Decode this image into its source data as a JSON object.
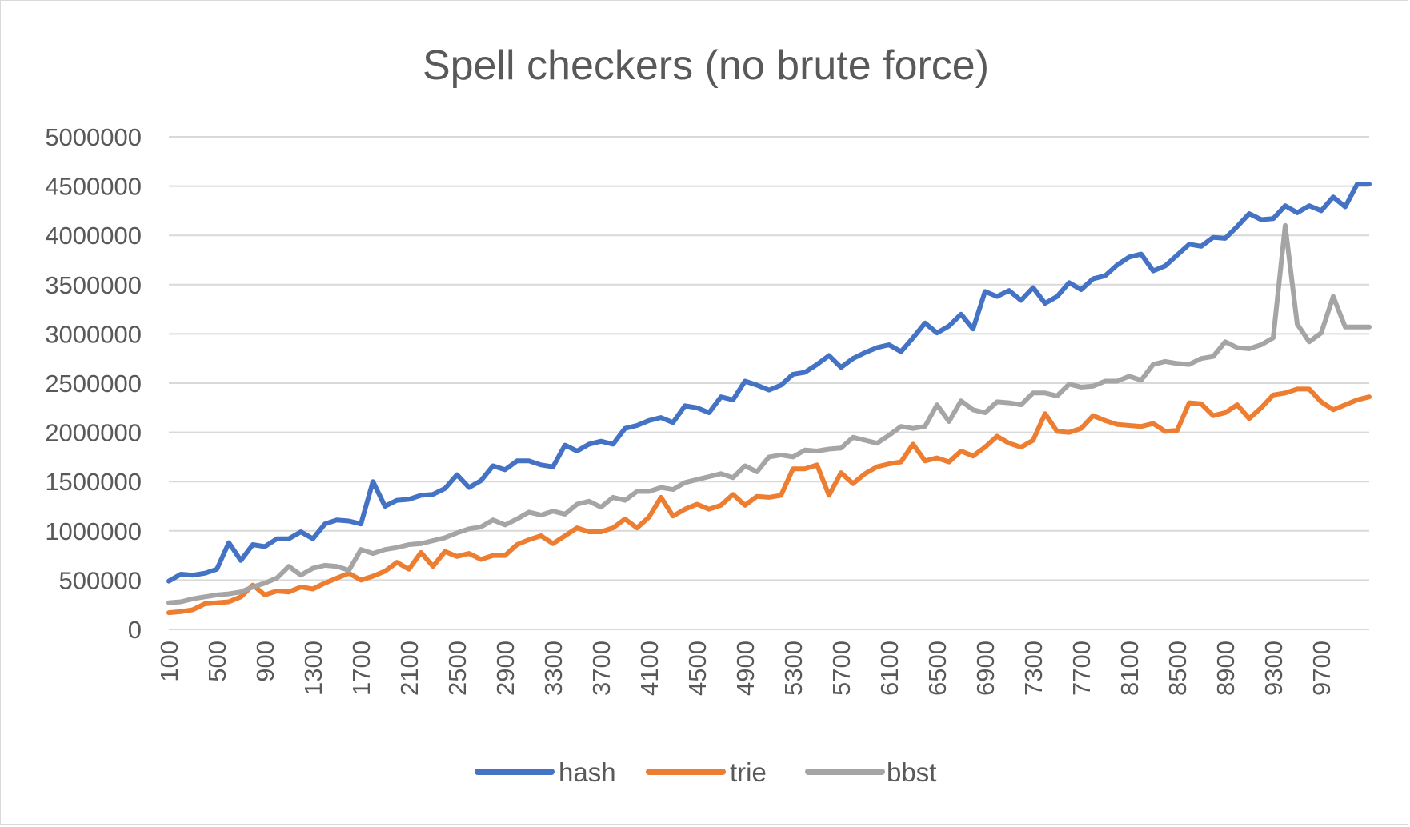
{
  "chart_data": {
    "type": "line",
    "title": "Spell checkers (no brute force)",
    "xlabel": "",
    "ylabel": "",
    "ylim": [
      0,
      5000000
    ],
    "yticks": [
      0,
      500000,
      1000000,
      1500000,
      2000000,
      2500000,
      3000000,
      3500000,
      4000000,
      4500000,
      5000000
    ],
    "ytick_labels": [
      "0",
      "500000",
      "1000000",
      "1500000",
      "2000000",
      "2500000",
      "3000000",
      "3500000",
      "4000000",
      "4500000",
      "5000000"
    ],
    "xtick_labels": [
      "100",
      "500",
      "900",
      "1300",
      "1700",
      "2100",
      "2500",
      "2900",
      "3300",
      "3700",
      "4100",
      "4500",
      "4900",
      "5300",
      "5700",
      "6100",
      "6500",
      "6900",
      "7300",
      "7700",
      "8100",
      "8500",
      "8900",
      "9300",
      "9700"
    ],
    "x": [
      100,
      200,
      300,
      400,
      500,
      600,
      700,
      800,
      900,
      1000,
      1100,
      1200,
      1300,
      1400,
      1500,
      1600,
      1700,
      1800,
      1900,
      2000,
      2100,
      2200,
      2300,
      2400,
      2500,
      2600,
      2700,
      2800,
      2900,
      3000,
      3100,
      3200,
      3300,
      3400,
      3500,
      3600,
      3700,
      3800,
      3900,
      4000,
      4100,
      4200,
      4300,
      4400,
      4500,
      4600,
      4700,
      4800,
      4900,
      5000,
      5100,
      5200,
      5300,
      5400,
      5500,
      5600,
      5700,
      5800,
      5900,
      6000,
      6100,
      6200,
      6300,
      6400,
      6500,
      6600,
      6700,
      6800,
      6900,
      7000,
      7100,
      7200,
      7300,
      7400,
      7500,
      7600,
      7700,
      7800,
      7900,
      8000,
      8100,
      8200,
      8300,
      8400,
      8500,
      8600,
      8700,
      8800,
      8900,
      9000,
      9100,
      9200,
      9300,
      9400,
      9500,
      9600,
      9700,
      9800,
      9900,
      10000,
      10100
    ],
    "legend_position": "bottom",
    "grid": true,
    "series": [
      {
        "name": "hash",
        "color": "#4472c4",
        "values": [
          490000,
          560000,
          550000,
          570000,
          610000,
          880000,
          700000,
          860000,
          840000,
          920000,
          920000,
          990000,
          920000,
          1070000,
          1110000,
          1100000,
          1070000,
          1500000,
          1250000,
          1310000,
          1320000,
          1360000,
          1370000,
          1430000,
          1570000,
          1440000,
          1510000,
          1660000,
          1620000,
          1710000,
          1710000,
          1670000,
          1650000,
          1870000,
          1810000,
          1880000,
          1910000,
          1880000,
          2040000,
          2070000,
          2120000,
          2150000,
          2100000,
          2270000,
          2250000,
          2200000,
          2360000,
          2330000,
          2520000,
          2480000,
          2430000,
          2480000,
          2590000,
          2610000,
          2690000,
          2780000,
          2660000,
          2750000,
          2810000,
          2860000,
          2890000,
          2820000,
          2960000,
          3110000,
          3010000,
          3080000,
          3200000,
          3050000,
          3430000,
          3380000,
          3440000,
          3340000,
          3470000,
          3310000,
          3380000,
          3520000,
          3450000,
          3560000,
          3590000,
          3700000,
          3780000,
          3810000,
          3640000,
          3690000,
          3800000,
          3910000,
          3890000,
          3980000,
          3970000,
          4090000,
          4220000,
          4160000,
          4170000,
          4300000,
          4230000,
          4300000,
          4250000,
          4390000,
          4290000,
          4520000,
          4520000
        ]
      },
      {
        "name": "trie",
        "color": "#ed7d31",
        "values": [
          170000,
          180000,
          200000,
          260000,
          270000,
          280000,
          330000,
          450000,
          350000,
          390000,
          380000,
          430000,
          410000,
          470000,
          520000,
          570000,
          500000,
          540000,
          590000,
          680000,
          610000,
          780000,
          640000,
          790000,
          740000,
          770000,
          710000,
          750000,
          750000,
          860000,
          910000,
          950000,
          870000,
          950000,
          1030000,
          990000,
          990000,
          1030000,
          1120000,
          1030000,
          1140000,
          1340000,
          1150000,
          1220000,
          1270000,
          1220000,
          1260000,
          1370000,
          1260000,
          1350000,
          1340000,
          1360000,
          1630000,
          1630000,
          1670000,
          1360000,
          1590000,
          1480000,
          1580000,
          1650000,
          1680000,
          1700000,
          1880000,
          1710000,
          1740000,
          1700000,
          1810000,
          1760000,
          1850000,
          1960000,
          1890000,
          1850000,
          1920000,
          2190000,
          2010000,
          2000000,
          2040000,
          2170000,
          2120000,
          2080000,
          2070000,
          2060000,
          2090000,
          2010000,
          2020000,
          2300000,
          2290000,
          2170000,
          2200000,
          2280000,
          2140000,
          2250000,
          2380000,
          2400000,
          2440000,
          2440000,
          2310000,
          2230000,
          2280000,
          2330000,
          2360000
        ]
      },
      {
        "name": "bbst",
        "color": "#a5a5a5",
        "values": [
          270000,
          280000,
          310000,
          330000,
          350000,
          360000,
          380000,
          430000,
          470000,
          520000,
          640000,
          550000,
          620000,
          650000,
          640000,
          600000,
          810000,
          770000,
          810000,
          830000,
          860000,
          870000,
          900000,
          930000,
          980000,
          1020000,
          1040000,
          1110000,
          1060000,
          1120000,
          1190000,
          1160000,
          1200000,
          1170000,
          1270000,
          1300000,
          1240000,
          1340000,
          1310000,
          1400000,
          1400000,
          1440000,
          1420000,
          1490000,
          1520000,
          1550000,
          1580000,
          1540000,
          1660000,
          1600000,
          1750000,
          1770000,
          1750000,
          1820000,
          1810000,
          1830000,
          1840000,
          1950000,
          1920000,
          1890000,
          1970000,
          2060000,
          2040000,
          2060000,
          2280000,
          2110000,
          2320000,
          2230000,
          2200000,
          2310000,
          2300000,
          2280000,
          2400000,
          2400000,
          2370000,
          2490000,
          2460000,
          2470000,
          2520000,
          2520000,
          2570000,
          2530000,
          2690000,
          2720000,
          2700000,
          2690000,
          2750000,
          2770000,
          2920000,
          2860000,
          2850000,
          2890000,
          2960000,
          4100000,
          3100000,
          2920000,
          3010000,
          3380000,
          3070000,
          3070000,
          3070000
        ]
      }
    ]
  }
}
